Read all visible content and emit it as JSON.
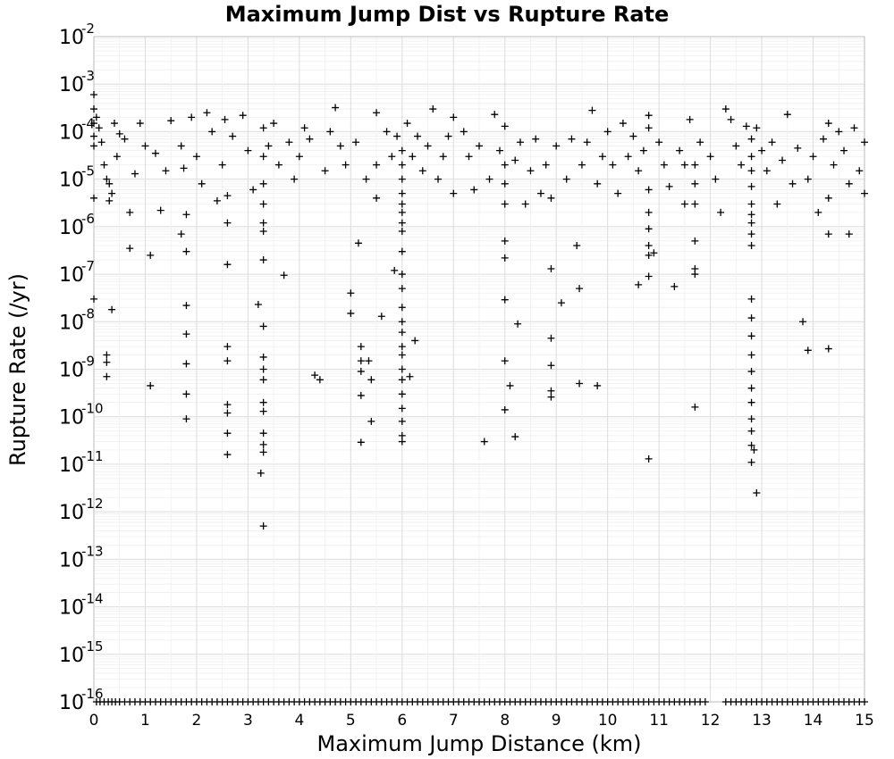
{
  "chart_data": {
    "type": "scatter",
    "title": "Maximum Jump Dist vs Rupture Rate",
    "xlabel": "Maximum Jump Distance (km)",
    "ylabel": "Rupture Rate (/yr)",
    "xlim": [
      0,
      15
    ],
    "ylim_exponent": [
      -16,
      -2
    ],
    "y_scale": "log",
    "grid": true,
    "marker": "+",
    "x_ticks": [
      "0",
      "1",
      "2",
      "3",
      "4",
      "5",
      "6",
      "7",
      "8",
      "9",
      "10",
      "11",
      "12",
      "13",
      "14",
      "15"
    ],
    "y_ticks": [
      {
        "base": "10",
        "exp": "-2"
      },
      {
        "base": "10",
        "exp": "-3"
      },
      {
        "base": "10",
        "exp": "-4"
      },
      {
        "base": "10",
        "exp": "-5"
      },
      {
        "base": "10",
        "exp": "-6"
      },
      {
        "base": "10",
        "exp": "-7"
      },
      {
        "base": "10",
        "exp": "-8"
      },
      {
        "base": "10",
        "exp": "-9"
      },
      {
        "base": "10",
        "exp": "-10"
      },
      {
        "base": "10",
        "exp": "-11"
      },
      {
        "base": "10",
        "exp": "-12"
      },
      {
        "base": "10",
        "exp": "-13"
      },
      {
        "base": "10",
        "exp": "-14"
      },
      {
        "base": "10",
        "exp": "-15"
      },
      {
        "base": "10",
        "exp": "-16"
      }
    ],
    "points": [
      [
        0.0,
        0.0006
      ],
      [
        0.0,
        0.0003
      ],
      [
        0.0,
        0.00015
      ],
      [
        0.0,
        8e-05
      ],
      [
        0.0,
        5e-05
      ],
      [
        0.0,
        4e-06
      ],
      [
        0.0,
        3e-08
      ],
      [
        0.05,
        0.0002
      ],
      [
        0.1,
        0.00012
      ],
      [
        0.15,
        6e-05
      ],
      [
        0.2,
        2e-05
      ],
      [
        0.25,
        1e-05
      ],
      [
        0.25,
        2e-09
      ],
      [
        0.25,
        1.4e-09
      ],
      [
        0.25,
        7e-10
      ],
      [
        0.3,
        8e-06
      ],
      [
        0.3,
        3.5e-06
      ],
      [
        0.35,
        5e-06
      ],
      [
        0.35,
        1.8e-08
      ],
      [
        0.4,
        0.00015
      ],
      [
        0.45,
        3e-05
      ],
      [
        0.5,
        9e-05
      ],
      [
        0.6,
        7e-05
      ],
      [
        0.7,
        2e-06
      ],
      [
        0.7,
        3.5e-07
      ],
      [
        0.8,
        1.3e-05
      ],
      [
        0.9,
        0.00015
      ],
      [
        1.0,
        5e-05
      ],
      [
        1.1,
        2.5e-07
      ],
      [
        1.1,
        4.5e-10
      ],
      [
        1.2,
        3.5e-05
      ],
      [
        1.3,
        2.2e-06
      ],
      [
        1.4,
        1.5e-05
      ],
      [
        1.5,
        0.00017
      ],
      [
        1.7,
        5e-05
      ],
      [
        1.7,
        7e-07
      ],
      [
        1.75,
        1.7e-05
      ],
      [
        1.8,
        2.2e-08
      ],
      [
        1.8,
        5.5e-09
      ],
      [
        1.8,
        1.3e-09
      ],
      [
        1.8,
        3e-10
      ],
      [
        1.8,
        9e-11
      ],
      [
        1.8,
        3e-07
      ],
      [
        1.8,
        1.8e-06
      ],
      [
        1.9,
        0.0002
      ],
      [
        2.0,
        3e-05
      ],
      [
        2.1,
        8e-06
      ],
      [
        2.2,
        0.00025
      ],
      [
        2.3,
        0.0001
      ],
      [
        2.4,
        3.5e-06
      ],
      [
        2.5,
        2e-05
      ],
      [
        2.55,
        0.00018
      ],
      [
        2.6,
        1.6e-07
      ],
      [
        2.6,
        3e-09
      ],
      [
        2.6,
        1.5e-09
      ],
      [
        2.6,
        1.8e-10
      ],
      [
        2.6,
        1.2e-10
      ],
      [
        2.6,
        4.5e-11
      ],
      [
        2.6,
        1.6e-11
      ],
      [
        2.6,
        4.5e-06
      ],
      [
        2.6,
        1.2e-06
      ],
      [
        2.7,
        8e-05
      ],
      [
        2.9,
        0.00022
      ],
      [
        3.0,
        4e-05
      ],
      [
        3.1,
        6e-06
      ],
      [
        3.2,
        2.3e-08
      ],
      [
        3.25,
        6.5e-12
      ],
      [
        3.3,
        0.00012
      ],
      [
        3.3,
        3e-05
      ],
      [
        3.3,
        8e-06
      ],
      [
        3.3,
        2e-07
      ],
      [
        3.3,
        8e-09
      ],
      [
        3.3,
        1.8e-09
      ],
      [
        3.3,
        1e-09
      ],
      [
        3.3,
        6e-10
      ],
      [
        3.3,
        2e-10
      ],
      [
        3.3,
        1.3e-10
      ],
      [
        3.3,
        4.5e-11
      ],
      [
        3.3,
        2.6e-11
      ],
      [
        3.3,
        1.8e-11
      ],
      [
        3.3,
        5e-13
      ],
      [
        3.3,
        3e-06
      ],
      [
        3.3,
        1.2e-06
      ],
      [
        3.3,
        8e-07
      ],
      [
        3.4,
        5e-05
      ],
      [
        3.5,
        0.00015
      ],
      [
        3.6,
        2e-05
      ],
      [
        3.7,
        9.5e-08
      ],
      [
        3.8,
        6e-05
      ],
      [
        3.9,
        1e-05
      ],
      [
        4.0,
        3e-05
      ],
      [
        4.1,
        0.00012
      ],
      [
        4.2,
        7e-05
      ],
      [
        4.3,
        7.5e-10
      ],
      [
        4.4,
        6e-10
      ],
      [
        4.5,
        1.5e-05
      ],
      [
        4.6,
        0.0001
      ],
      [
        4.7,
        0.00032
      ],
      [
        4.8,
        5e-05
      ],
      [
        4.9,
        2e-05
      ],
      [
        5.0,
        4e-08
      ],
      [
        5.0,
        1.5e-08
      ],
      [
        5.1,
        6e-05
      ],
      [
        5.15,
        4.5e-07
      ],
      [
        5.2,
        3e-09
      ],
      [
        5.2,
        1.5e-09
      ],
      [
        5.2,
        9e-10
      ],
      [
        5.2,
        2.8e-10
      ],
      [
        5.2,
        2.9e-11
      ],
      [
        5.3,
        1e-05
      ],
      [
        5.35,
        1.5e-09
      ],
      [
        5.4,
        8e-11
      ],
      [
        5.4,
        6e-10
      ],
      [
        5.5,
        0.00025
      ],
      [
        5.5,
        4e-06
      ],
      [
        5.5,
        2e-05
      ],
      [
        5.6,
        1.3e-08
      ],
      [
        5.7,
        0.0001
      ],
      [
        5.8,
        3e-05
      ],
      [
        5.85,
        1.2e-07
      ],
      [
        5.9,
        8e-05
      ],
      [
        6.0,
        4e-05
      ],
      [
        6.0,
        2e-05
      ],
      [
        6.0,
        1e-05
      ],
      [
        6.0,
        5e-06
      ],
      [
        6.0,
        3e-06
      ],
      [
        6.0,
        2e-06
      ],
      [
        6.0,
        1.2e-06
      ],
      [
        6.0,
        8e-07
      ],
      [
        6.0,
        3e-07
      ],
      [
        6.0,
        1e-07
      ],
      [
        6.0,
        5e-08
      ],
      [
        6.0,
        2e-08
      ],
      [
        6.0,
        1e-08
      ],
      [
        6.0,
        6e-09
      ],
      [
        6.0,
        3e-09
      ],
      [
        6.0,
        2e-09
      ],
      [
        6.0,
        1e-09
      ],
      [
        6.0,
        6e-10
      ],
      [
        6.0,
        3e-10
      ],
      [
        6.0,
        1.5e-10
      ],
      [
        6.0,
        8e-11
      ],
      [
        6.0,
        4e-11
      ],
      [
        6.0,
        3e-11
      ],
      [
        6.1,
        0.00015
      ],
      [
        6.15,
        7e-10
      ],
      [
        6.2,
        3e-05
      ],
      [
        6.25,
        4e-09
      ],
      [
        6.3,
        8e-05
      ],
      [
        6.4,
        1.5e-05
      ],
      [
        6.5,
        5e-05
      ],
      [
        6.6,
        0.0003
      ],
      [
        6.7,
        1e-05
      ],
      [
        6.8,
        3e-05
      ],
      [
        6.9,
        8e-05
      ],
      [
        7.0,
        0.0002
      ],
      [
        7.0,
        5e-06
      ],
      [
        7.2,
        0.0001
      ],
      [
        7.3,
        3e-05
      ],
      [
        7.4,
        6e-06
      ],
      [
        7.5,
        5e-05
      ],
      [
        7.6,
        3e-11
      ],
      [
        7.7,
        1e-05
      ],
      [
        7.8,
        0.00023
      ],
      [
        7.9,
        4e-05
      ],
      [
        8.0,
        0.00013
      ],
      [
        8.0,
        2e-05
      ],
      [
        8.0,
        8e-06
      ],
      [
        8.0,
        3e-06
      ],
      [
        8.0,
        5e-07
      ],
      [
        8.0,
        2.2e-07
      ],
      [
        8.0,
        2.9e-08
      ],
      [
        8.0,
        1.5e-09
      ],
      [
        8.0,
        1.4e-10
      ],
      [
        8.1,
        4.5e-10
      ],
      [
        8.2,
        2.5e-05
      ],
      [
        8.2,
        3.8e-11
      ],
      [
        8.25,
        9e-09
      ],
      [
        8.3,
        6e-05
      ],
      [
        8.4,
        3e-06
      ],
      [
        8.5,
        1.5e-05
      ],
      [
        8.6,
        7e-05
      ],
      [
        8.7,
        5e-06
      ],
      [
        8.8,
        2e-05
      ],
      [
        8.9,
        4e-06
      ],
      [
        8.9,
        1.3e-07
      ],
      [
        8.9,
        4.5e-09
      ],
      [
        8.9,
        1.2e-09
      ],
      [
        8.9,
        3.5e-10
      ],
      [
        8.9,
        2.6e-10
      ],
      [
        9.0,
        5e-05
      ],
      [
        9.1,
        2.5e-08
      ],
      [
        9.2,
        1e-05
      ],
      [
        9.3,
        7e-05
      ],
      [
        9.4,
        4e-07
      ],
      [
        9.45,
        5e-08
      ],
      [
        9.45,
        5e-10
      ],
      [
        9.5,
        2e-05
      ],
      [
        9.6,
        6e-05
      ],
      [
        9.7,
        0.00028
      ],
      [
        9.8,
        4.5e-10
      ],
      [
        9.8,
        8e-06
      ],
      [
        9.9,
        3e-05
      ],
      [
        10.0,
        0.0001
      ],
      [
        10.1,
        2e-05
      ],
      [
        10.2,
        5e-06
      ],
      [
        10.3,
        0.00015
      ],
      [
        10.4,
        3e-05
      ],
      [
        10.5,
        8e-05
      ],
      [
        10.6,
        1.5e-05
      ],
      [
        10.6,
        6e-08
      ],
      [
        10.7,
        4e-05
      ],
      [
        10.8,
        0.00012
      ],
      [
        10.8,
        0.00022
      ],
      [
        10.8,
        6e-06
      ],
      [
        10.8,
        2e-06
      ],
      [
        10.8,
        9e-07
      ],
      [
        10.8,
        4e-07
      ],
      [
        10.8,
        2.5e-07
      ],
      [
        10.8,
        9e-08
      ],
      [
        10.8,
        1.3e-11
      ],
      [
        10.9,
        2.8e-07
      ],
      [
        11.0,
        6e-05
      ],
      [
        11.1,
        2e-05
      ],
      [
        11.2,
        7e-06
      ],
      [
        11.3,
        5.5e-08
      ],
      [
        11.4,
        4e-05
      ],
      [
        11.5,
        2e-05
      ],
      [
        11.5,
        3e-06
      ],
      [
        11.6,
        0.00018
      ],
      [
        11.7,
        5e-07
      ],
      [
        11.7,
        1.3e-07
      ],
      [
        11.7,
        1e-07
      ],
      [
        11.7,
        1.6e-10
      ],
      [
        11.7,
        2e-05
      ],
      [
        11.7,
        8e-06
      ],
      [
        11.7,
        3e-06
      ],
      [
        11.8,
        6e-05
      ],
      [
        12.0,
        3e-05
      ],
      [
        12.1,
        1e-05
      ],
      [
        12.2,
        2e-06
      ],
      [
        12.3,
        0.0003
      ],
      [
        12.4,
        0.00018
      ],
      [
        12.5,
        5e-05
      ],
      [
        12.6,
        2e-05
      ],
      [
        12.7,
        0.00013
      ],
      [
        12.8,
        7e-05
      ],
      [
        12.8,
        3e-05
      ],
      [
        12.8,
        1.5e-05
      ],
      [
        12.8,
        7e-06
      ],
      [
        12.8,
        3e-06
      ],
      [
        12.8,
        1.8e-06
      ],
      [
        12.8,
        1.2e-06
      ],
      [
        12.8,
        7e-07
      ],
      [
        12.8,
        4e-07
      ],
      [
        12.8,
        3e-08
      ],
      [
        12.8,
        1.2e-08
      ],
      [
        12.8,
        5e-09
      ],
      [
        12.8,
        2e-09
      ],
      [
        12.8,
        9e-10
      ],
      [
        12.8,
        4e-10
      ],
      [
        12.8,
        2e-10
      ],
      [
        12.8,
        9e-11
      ],
      [
        12.8,
        5e-11
      ],
      [
        12.8,
        2.5e-11
      ],
      [
        12.8,
        1.1e-11
      ],
      [
        12.85,
        2e-11
      ],
      [
        12.9,
        2.5e-12
      ],
      [
        12.9,
        0.00012
      ],
      [
        13.0,
        4e-05
      ],
      [
        13.1,
        1.5e-05
      ],
      [
        13.2,
        6e-05
      ],
      [
        13.3,
        3e-06
      ],
      [
        13.4,
        2.5e-05
      ],
      [
        13.5,
        0.00023
      ],
      [
        13.6,
        8e-06
      ],
      [
        13.7,
        4.5e-05
      ],
      [
        13.8,
        1e-08
      ],
      [
        13.9,
        2.5e-09
      ],
      [
        13.9,
        1e-05
      ],
      [
        14.0,
        3e-05
      ],
      [
        14.1,
        2e-06
      ],
      [
        14.2,
        7e-05
      ],
      [
        14.3,
        0.00015
      ],
      [
        14.3,
        2.7e-09
      ],
      [
        14.3,
        4e-06
      ],
      [
        14.3,
        7e-07
      ],
      [
        14.4,
        2e-05
      ],
      [
        14.5,
        0.0001
      ],
      [
        14.6,
        4e-05
      ],
      [
        14.7,
        8e-06
      ],
      [
        14.7,
        7e-07
      ],
      [
        14.8,
        0.00012
      ],
      [
        14.9,
        1.5e-05
      ],
      [
        15.0,
        6e-05
      ],
      [
        15.0,
        5e-06
      ]
    ],
    "floor_points_x": [
      0.05,
      0.12,
      0.2,
      0.28,
      0.35,
      0.42,
      0.5,
      0.6,
      0.7,
      0.8,
      0.9,
      1.0,
      1.1,
      1.2,
      1.3,
      1.4,
      1.5,
      1.6,
      1.7,
      1.8,
      1.9,
      2.0,
      2.1,
      2.2,
      2.3,
      2.4,
      2.5,
      2.6,
      2.7,
      2.8,
      2.9,
      3.0,
      3.1,
      3.2,
      3.3,
      3.4,
      3.5,
      3.6,
      3.7,
      3.8,
      3.9,
      4.0,
      4.1,
      4.2,
      4.3,
      4.4,
      4.5,
      4.6,
      4.7,
      4.8,
      4.9,
      5.0,
      5.1,
      5.2,
      5.3,
      5.4,
      5.5,
      5.6,
      5.7,
      5.8,
      5.9,
      6.0,
      6.1,
      6.2,
      6.3,
      6.4,
      6.5,
      6.6,
      6.7,
      6.8,
      6.9,
      7.0,
      7.1,
      7.2,
      7.3,
      7.4,
      7.5,
      7.6,
      7.7,
      7.8,
      7.9,
      8.0,
      8.1,
      8.2,
      8.3,
      8.4,
      8.5,
      8.6,
      8.7,
      8.8,
      8.9,
      9.0,
      9.1,
      9.2,
      9.3,
      9.4,
      9.5,
      9.6,
      9.7,
      9.8,
      9.9,
      10.0,
      10.1,
      10.2,
      10.3,
      10.4,
      10.5,
      10.6,
      10.7,
      10.8,
      10.9,
      11.0,
      11.1,
      11.2,
      11.3,
      11.4,
      11.5,
      11.6,
      11.7,
      11.8,
      11.9,
      12.3,
      12.4,
      12.5,
      12.6,
      12.7,
      12.8,
      12.9,
      13.0,
      13.1,
      13.2,
      13.3,
      13.4,
      13.5,
      13.6,
      13.7,
      13.8,
      13.9,
      14.0,
      14.1,
      14.2,
      14.3,
      14.4,
      14.5,
      14.6,
      14.7,
      14.8,
      14.9,
      15.0
    ],
    "floor_value": 1e-16
  }
}
